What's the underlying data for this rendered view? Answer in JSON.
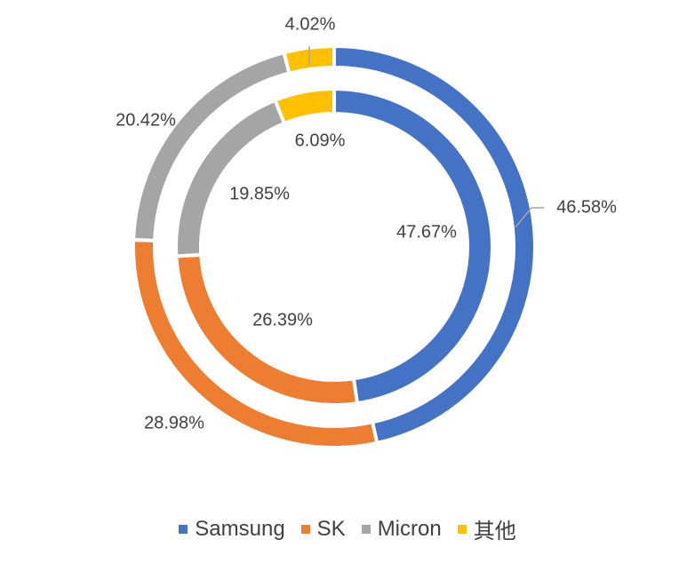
{
  "chart_data": {
    "type": "doughnut",
    "categories": [
      "Samsung",
      "SK",
      "Micron",
      "其他"
    ],
    "colors": [
      "#4472c4",
      "#ed7d31",
      "#a5a5a5",
      "#ffc000"
    ],
    "series": [
      {
        "ring": "outer",
        "values": [
          46.58,
          28.98,
          20.42,
          4.02
        ],
        "labels": [
          "46.58%",
          "28.98%",
          "20.42%",
          "4.02%"
        ]
      },
      {
        "ring": "inner",
        "values": [
          47.67,
          26.39,
          19.85,
          6.09
        ],
        "labels": [
          "47.67%",
          "26.39%",
          "19.85%",
          "6.09%"
        ]
      }
    ],
    "legend": {
      "position": "bottom",
      "entries": [
        "Samsung",
        "SK",
        "Micron",
        "其他"
      ]
    }
  }
}
